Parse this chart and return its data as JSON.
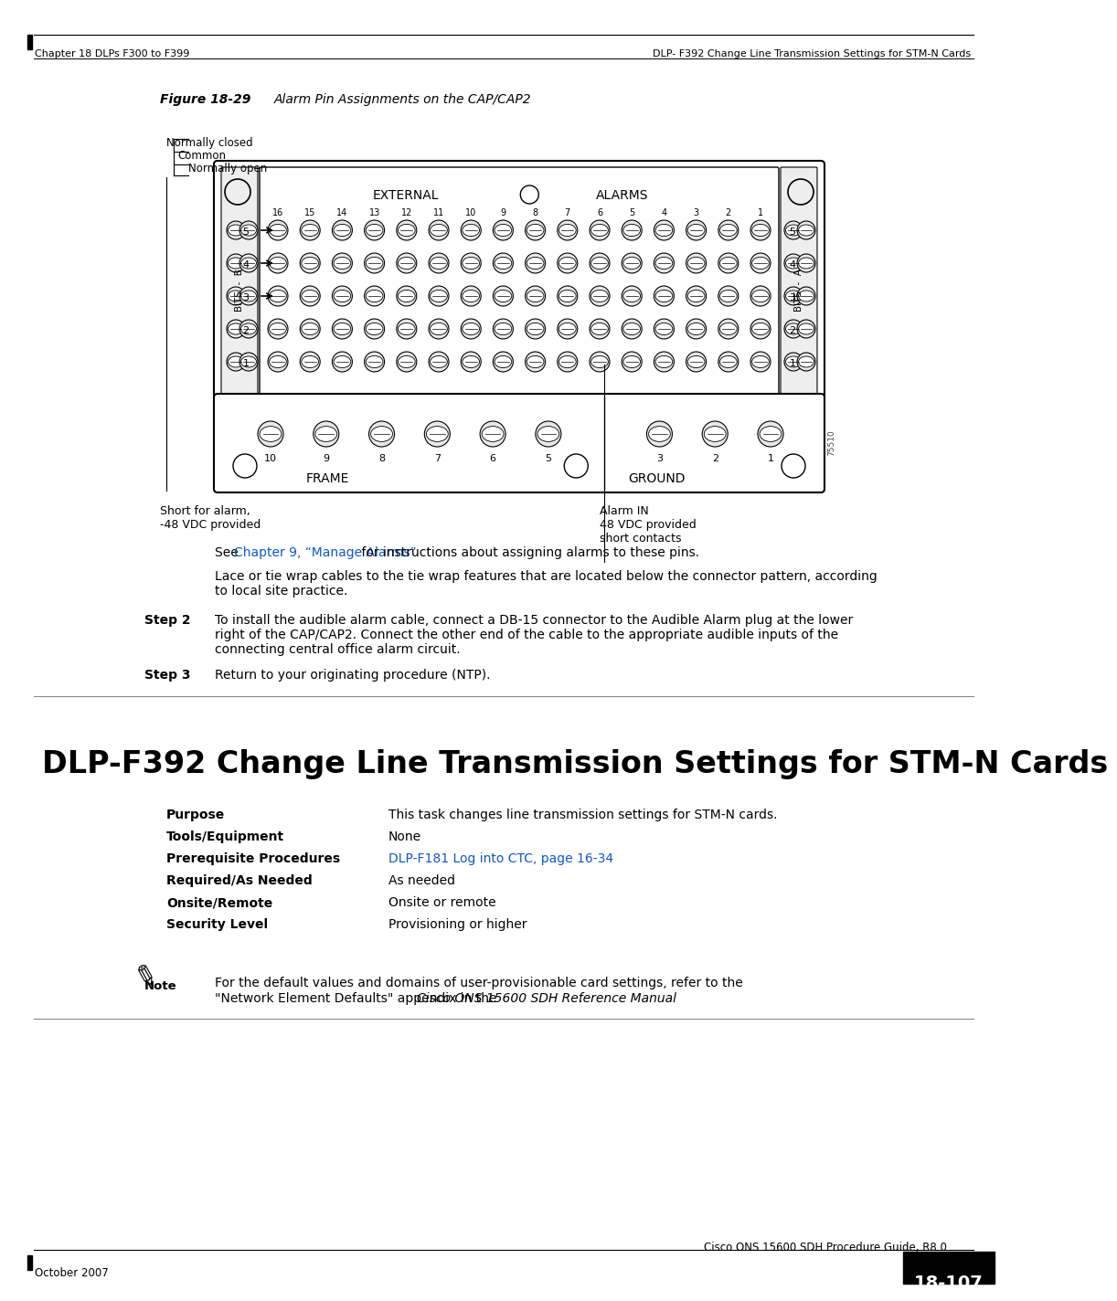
{
  "page_bg": "#ffffff",
  "header_left": "Chapter 18 DLPs F300 to F399",
  "header_right": "DLP- F392 Change Line Transmission Settings for STM-N Cards",
  "footer_left": "October 2007",
  "footer_right_text": "Cisco ONS 15600 SDH Procedure Guide, R8.0",
  "footer_page": "18-107",
  "figure_label": "Figure 18-29",
  "figure_title": "Alarm Pin Assignments on the CAP/CAP2",
  "section_title": "DLP-F392 Change Line Transmission Settings for STM-N Cards",
  "table_rows": [
    [
      "Purpose",
      "This task changes line transmission settings for STM-N cards."
    ],
    [
      "Tools/Equipment",
      "None"
    ],
    [
      "Prerequisite Procedures",
      "DLP-F181 Log into CTC, page 16-34"
    ],
    [
      "Required/As Needed",
      "As needed"
    ],
    [
      "Onsite/Remote",
      "Onsite or remote"
    ],
    [
      "Security Level",
      "Provisioning or higher"
    ]
  ],
  "note_line1": "For the default values and domains of user-provisionable card settings, refer to the",
  "note_line2_plain": "\"Network Element Defaults\" appendix in the ",
  "note_line2_italic": "Cisco ONS 15600 SDH Reference Manual",
  "note_line2_end": ".",
  "para1_before": "See ",
  "para1_link": "Chapter 9, “Manage Alarms”",
  "para1_after": " for instructions about assigning alarms to these pins.",
  "para2_line1": "Lace or tie wrap cables to the tie wrap features that are located below the connector pattern, according",
  "para2_line2": "to local site practice.",
  "step2_label": "Step 2",
  "step2_line1": "To install the audible alarm cable, connect a DB-15 connector to the Audible Alarm plug at the lower",
  "step2_line2": "right of the CAP/CAP2. Connect the other end of the cable to the appropriate audible inputs of the",
  "step2_line3": "connecting central office alarm circuit.",
  "step3_label": "Step 3",
  "step3_text": "Return to your originating procedure (NTP).",
  "normally_closed": "Normally closed",
  "common": "Common",
  "normally_open": "Normally open",
  "external": "EXTERNAL",
  "alarms": "ALARMS",
  "frame": "FRAME",
  "ground": "GROUND",
  "short_alarm_line1": "Short for alarm,",
  "short_alarm_line2": "-48 VDC provided",
  "alarm_in_line1": "Alarm IN",
  "alarm_in_line2": "48 VDC provided",
  "alarm_in_line3": "short contacts",
  "figure_number": "75510",
  "link_color": "#1155cc",
  "text_color": "#000000"
}
